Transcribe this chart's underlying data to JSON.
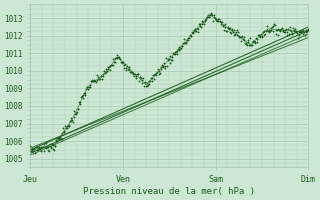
{
  "bg_color": "#cce8d4",
  "grid_color": "#a8c8b0",
  "line_color": "#1a5c1a",
  "text_color": "#1a5c1a",
  "ylabel_ticks": [
    1005,
    1006,
    1007,
    1008,
    1009,
    1010,
    1011,
    1012,
    1013
  ],
  "ylim": [
    1004.5,
    1013.8
  ],
  "xlim": [
    0,
    96
  ],
  "xtick_positions": [
    0,
    32,
    64,
    96
  ],
  "xtick_labels": [
    "Jeu",
    "Ven",
    "Sam",
    "Dim"
  ],
  "xlabel": "Pression niveau de la mer( hPa )",
  "figsize": [
    3.2,
    2.0
  ],
  "dpi": 100
}
